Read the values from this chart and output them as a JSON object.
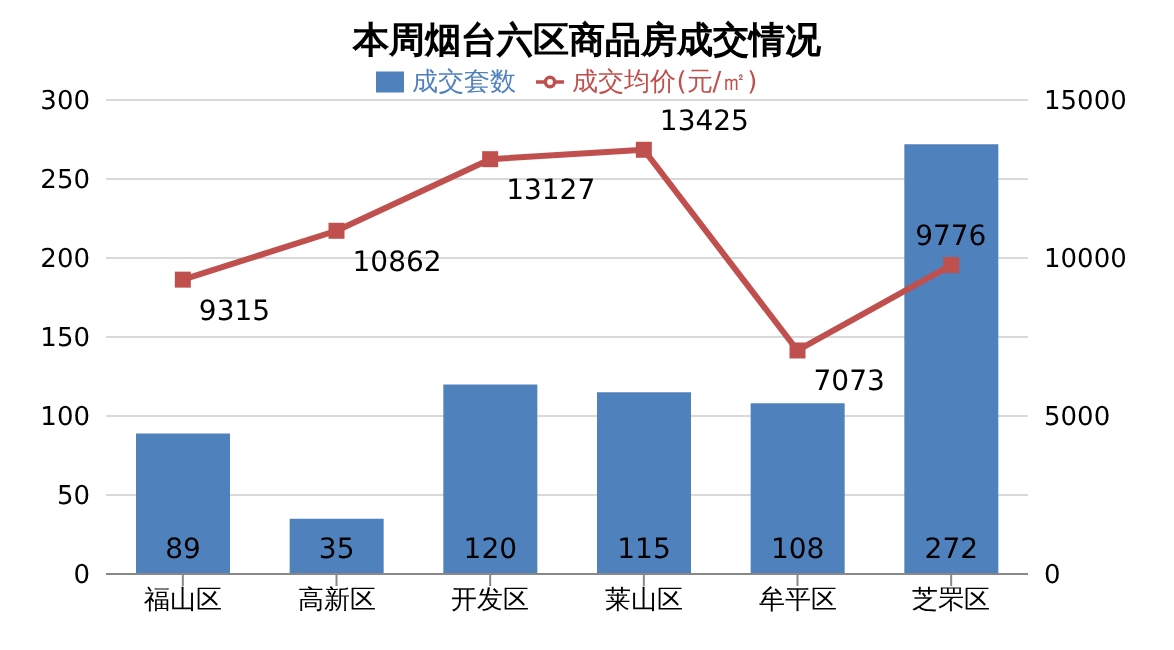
{
  "chart_data": {
    "type": "bar",
    "title": "本周烟台六区商品房成交情况",
    "categories": [
      "福山区",
      "高新区",
      "开发区",
      "莱山区",
      "牟平区",
      "芝罘区"
    ],
    "series": [
      {
        "name": "成交套数",
        "color": "#4f81bd",
        "values": [
          89,
          35,
          120,
          115,
          108,
          272
        ]
      },
      {
        "name": "成交均价(元/㎡)",
        "type": "line",
        "axis": "y2",
        "color": "#c0504d",
        "values": [
          9315,
          10862,
          13127,
          13425,
          7073,
          9776
        ]
      }
    ],
    "ylim": [
      0,
      300
    ],
    "yticks": [
      0,
      50,
      100,
      150,
      200,
      250,
      300
    ],
    "y2lim": [
      0,
      15000
    ],
    "y2ticks": [
      0,
      5000,
      10000,
      15000
    ],
    "grid": "y",
    "legend": "top",
    "marker": "square",
    "line_style": "solid",
    "data_labels": true
  }
}
